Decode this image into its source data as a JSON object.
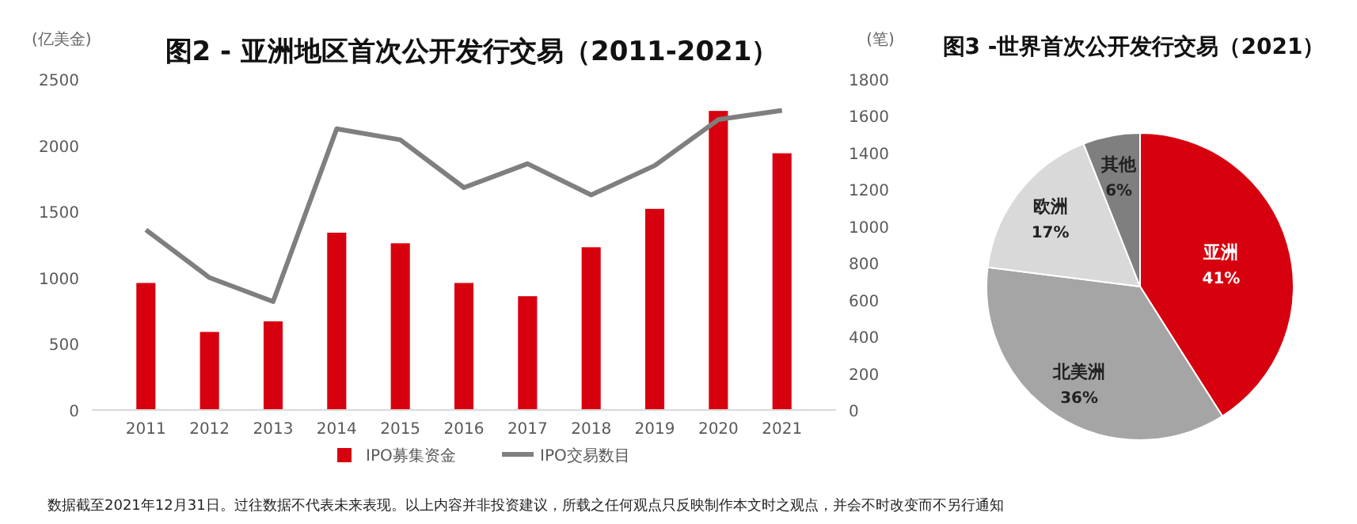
{
  "chart_data": [
    {
      "type": "bar",
      "title": "图2 - 亚洲地区首次公开发行交易（2011-2021）",
      "ylabel": "(亿美金)",
      "y2label": "(笔)",
      "categories": [
        "2011",
        "2012",
        "2013",
        "2014",
        "2015",
        "2016",
        "2017",
        "2018",
        "2019",
        "2020",
        "2021"
      ],
      "series": [
        {
          "name": "IPO募集资金",
          "type": "bar",
          "color": "#d7000f",
          "values": [
            960,
            590,
            670,
            1340,
            1260,
            960,
            860,
            1230,
            1520,
            2260,
            1940
          ]
        },
        {
          "name": "IPO交易数目",
          "type": "line",
          "axis": "y2",
          "color": "#7f7f7f",
          "values": [
            980,
            720,
            590,
            1530,
            1470,
            1210,
            1340,
            1170,
            1330,
            1580,
            1630
          ]
        }
      ],
      "ylim": [
        0,
        2500
      ],
      "yticks": [
        0,
        500,
        1000,
        1500,
        2000,
        2500
      ],
      "y2lim": [
        0,
        1800
      ],
      "y2ticks": [
        0,
        200,
        400,
        600,
        800,
        1000,
        1200,
        1400,
        1600,
        1800
      ],
      "legend": "bottom",
      "grid": false,
      "marker": "none",
      "annotations": [
        "数据截至2021年12月31日。过往数据不代表未来表现。以上内容并非投资建议，所载之任何观点只反映制作本文时之观点，并会不时改变而不另行通知"
      ]
    },
    {
      "type": "pie",
      "title": "图3 -世界首次公开发行交易（2021）",
      "categories": [
        "亚洲",
        "北美洲",
        "欧洲",
        "其他"
      ],
      "values": [
        41,
        36,
        17,
        6
      ],
      "colors": [
        "#d7000f",
        "#a6a5a5",
        "#d9d9d9",
        "#7f7f7f"
      ],
      "value_labels": [
        "41%",
        "36%",
        "17%",
        "6%"
      ]
    }
  ]
}
